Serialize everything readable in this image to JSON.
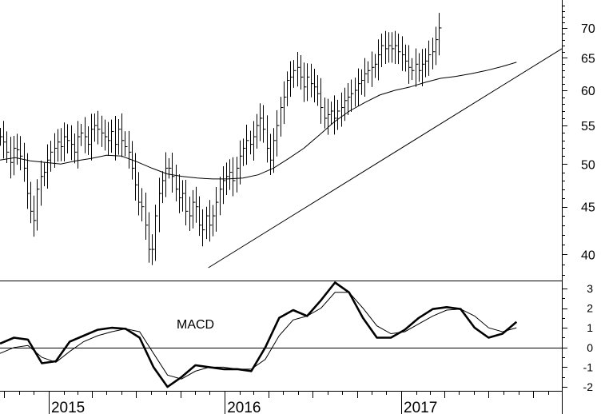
{
  "chart_data": [
    {
      "type": "ohlc",
      "title": "",
      "xlabel": "",
      "ylabel": "",
      "y_scale": "log",
      "ylim": [
        37.5,
        75
      ],
      "yticks": [
        40,
        45,
        50,
        55,
        60,
        65,
        70
      ],
      "ytick_labels": [
        "40",
        "45",
        "50",
        "55",
        "60",
        "65",
        "70"
      ],
      "x_year_labels": [
        {
          "label": "2015",
          "date": "2015-01-01"
        },
        {
          "label": "2016",
          "date": "2016-01-01"
        },
        {
          "label": "2017",
          "date": "2017-01-01"
        }
      ],
      "bar_color": "#000000",
      "weekly_ohlc_approx": {
        "start": "2014-09-22",
        "interval_days": 7,
        "close": [
          53.5,
          52.8,
          51.5,
          50.2,
          52,
          51.8,
          51,
          49.5,
          46.5,
          44.5,
          43.5,
          47,
          48.5,
          49,
          50.5,
          51.5,
          52,
          52.8,
          52.2,
          53.5,
          53,
          52.5,
          51.5,
          53.5,
          54,
          53.5,
          52.5,
          54.5,
          55,
          54.5,
          54,
          53.5,
          53,
          54.2,
          52.5,
          54.5,
          53,
          52.2,
          51.5,
          49.5,
          47.5,
          45.5,
          45,
          43,
          40.5,
          40.5,
          44,
          46.5,
          48,
          49.5,
          49.5,
          48.5,
          47,
          46,
          46.5,
          44.5,
          44,
          45.5,
          45,
          43,
          42.5,
          44,
          43,
          44,
          45.5,
          47,
          48,
          48.5,
          49,
          48,
          49.5,
          51,
          52,
          53,
          52.5,
          53.5,
          55,
          56,
          54.5,
          52,
          50.5,
          53,
          55,
          57.5,
          59,
          61.5,
          62,
          63,
          63.5,
          62,
          60.5,
          62,
          61,
          60.5,
          59.5,
          57.5,
          56,
          56.5,
          57,
          56,
          57,
          57.5,
          58.5,
          59,
          59.5,
          60,
          61,
          61.5,
          62.5,
          63,
          63.5,
          64,
          65.5,
          67,
          66.5,
          67,
          66.5,
          67,
          66,
          65.5,
          64.5,
          63.5,
          63,
          64,
          63,
          64,
          64.5,
          65.5,
          66,
          68,
          70
        ]
      },
      "series": [
        {
          "name": "",
          "kind": "moving_average",
          "values": [
            50.5,
            50.8,
            50.4,
            50.2,
            50,
            50.4,
            50.7,
            51.1,
            51,
            50.3,
            49.5,
            48.8,
            48.5,
            48.3,
            48.2,
            48.2,
            48.3,
            48.7,
            49.5,
            50.7,
            52,
            53.7,
            55.5,
            57,
            58.2,
            59.3,
            60,
            60.5,
            61.2,
            61.8,
            62.1,
            62.5,
            63,
            63.6,
            64.3
          ]
        },
        {
          "name": "",
          "kind": "trendline",
          "points": [
            [
              "2015-11-28",
              38.7
            ],
            [
              "2017-11-30",
              66.5
            ]
          ]
        }
      ]
    },
    {
      "type": "line",
      "title": "MACD",
      "xlabel": "",
      "ylabel": "",
      "ylim": [
        -2.2,
        3.4
      ],
      "yticks": [
        -2,
        -1,
        0,
        1,
        2,
        3
      ],
      "ytick_labels": [
        "-2",
        "-1",
        "0",
        "1",
        "2",
        "3"
      ],
      "zero_line": true,
      "series": [
        {
          "name": "",
          "style": "thick",
          "values": [
            0.2,
            0.5,
            0.4,
            -0.8,
            -0.7,
            0.3,
            0.6,
            0.9,
            1.0,
            0.95,
            0.5,
            -1.0,
            -2.0,
            -1.5,
            -0.9,
            -1.0,
            -1.1,
            -1.1,
            -1.2,
            0.0,
            1.5,
            1.9,
            1.6,
            2.4,
            3.3,
            2.8,
            1.5,
            0.5,
            0.5,
            0.9,
            1.5,
            1.95,
            2.05,
            1.95,
            1.0,
            0.5,
            0.7,
            1.3
          ]
        },
        {
          "name": "",
          "style": "thin",
          "values": [
            -0.3,
            0.0,
            0.1,
            -0.5,
            -0.75,
            -0.2,
            0.3,
            0.6,
            0.8,
            0.95,
            0.8,
            -0.3,
            -1.4,
            -1.6,
            -1.2,
            -1.0,
            -1.0,
            -1.1,
            -1.1,
            -0.6,
            0.6,
            1.4,
            1.6,
            2.0,
            2.8,
            2.8,
            2.0,
            1.1,
            0.7,
            0.8,
            1.2,
            1.6,
            1.9,
            1.95,
            1.6,
            1.0,
            0.8,
            1.0
          ]
        }
      ]
    }
  ]
}
